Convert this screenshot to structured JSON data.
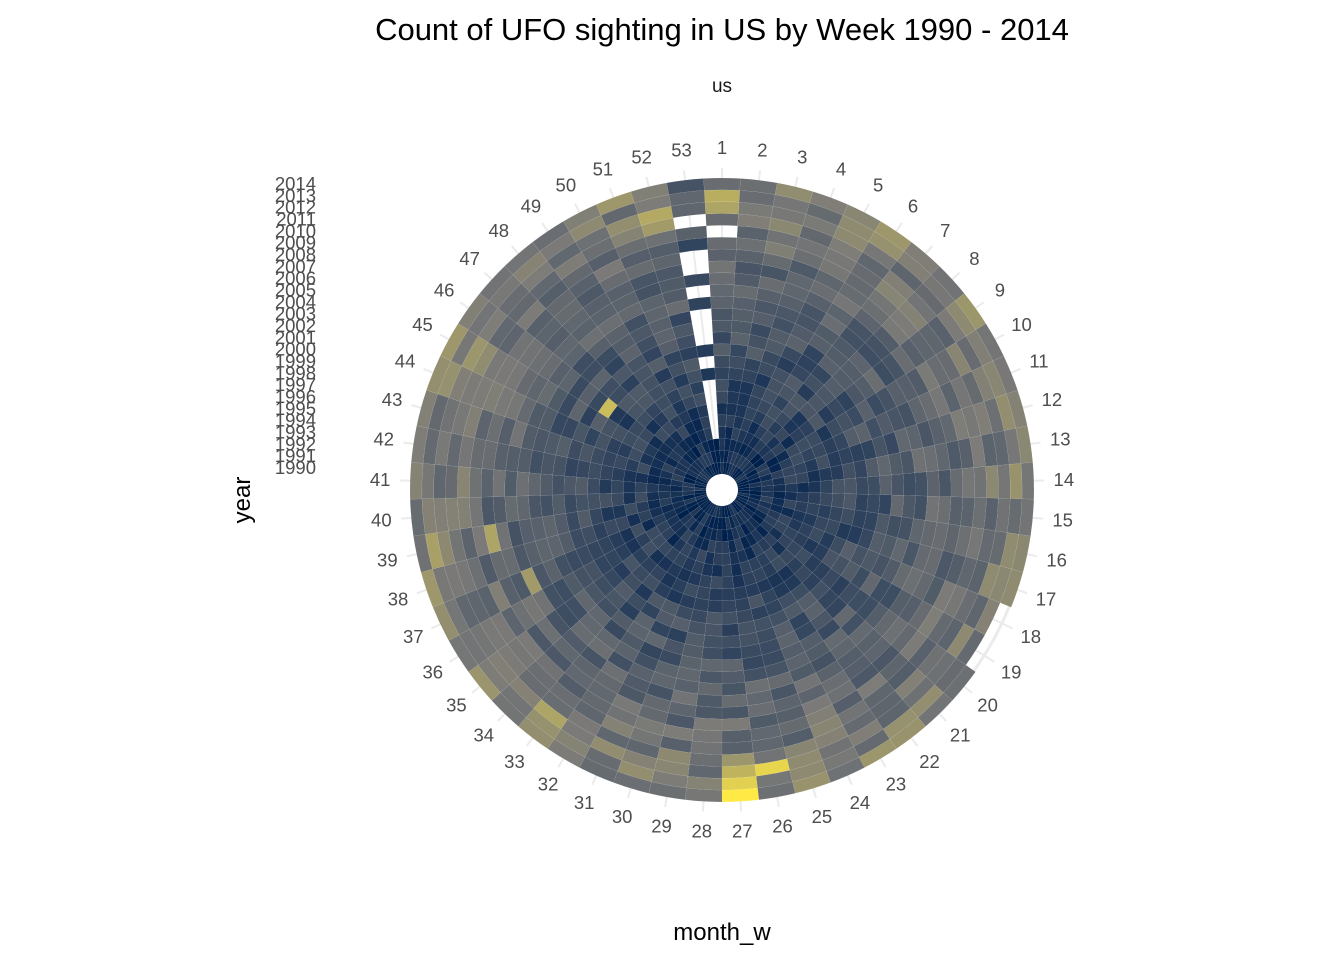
{
  "chart_data": {
    "type": "heatmap",
    "coord": "polar",
    "title": "Count of UFO sighting in US by Week 1990 - 2014",
    "facet": "us",
    "xlabel": "month_w",
    "ylabel": "year",
    "x_categories": [
      "1",
      "2",
      "3",
      "4",
      "5",
      "6",
      "7",
      "8",
      "9",
      "10",
      "11",
      "12",
      "13",
      "14",
      "15",
      "16",
      "17",
      "18",
      "19",
      "20",
      "21",
      "22",
      "23",
      "24",
      "25",
      "26",
      "27",
      "28",
      "29",
      "30",
      "31",
      "32",
      "33",
      "34",
      "35",
      "36",
      "37",
      "38",
      "39",
      "40",
      "41",
      "42",
      "43",
      "44",
      "45",
      "46",
      "47",
      "48",
      "49",
      "50",
      "51",
      "52",
      "53"
    ],
    "y_categories": [
      "1990",
      "1991",
      "1992",
      "1993",
      "1994",
      "1995",
      "1996",
      "1997",
      "1998",
      "1999",
      "2000",
      "2001",
      "2002",
      "2003",
      "2004",
      "2005",
      "2006",
      "2007",
      "2008",
      "2009",
      "2010",
      "2011",
      "2012",
      "2013",
      "2014"
    ],
    "grid": true,
    "legend": "none",
    "colors": {
      "low": "#00204c",
      "mid": "#7c7b78",
      "high": "#ffe945",
      "grid": "#ebebeb"
    },
    "hotspots": [
      {
        "week": 27,
        "year": "2014",
        "level": 1.0
      },
      {
        "week": 27,
        "year": "2013",
        "level": 0.9
      },
      {
        "week": 27,
        "year": "2012",
        "level": 0.78
      },
      {
        "week": 26,
        "year": "2012",
        "level": 0.92
      },
      {
        "week": 27,
        "year": "2011",
        "level": 0.66
      },
      {
        "week": 1,
        "year": "2013",
        "level": 0.76
      },
      {
        "week": 1,
        "year": "2012",
        "level": 0.72
      },
      {
        "week": 52,
        "year": "2012",
        "level": 0.74
      },
      {
        "week": 52,
        "year": "2011",
        "level": 0.68
      },
      {
        "week": 33,
        "year": "2012",
        "level": 0.72
      },
      {
        "week": 33,
        "year": "2013",
        "level": 0.64
      },
      {
        "week": 39,
        "year": "2013",
        "level": 0.7
      },
      {
        "week": 39,
        "year": "2008",
        "level": 0.72
      },
      {
        "week": 45,
        "year": "2012",
        "level": 0.66
      },
      {
        "week": 45,
        "year": "2011",
        "level": 0.62
      },
      {
        "week": 44,
        "year": "2013",
        "level": 0.64
      },
      {
        "week": 46,
        "year": "2000",
        "level": 0.82
      },
      {
        "week": 37,
        "year": "2006",
        "level": 0.68
      }
    ],
    "missing": [
      {
        "week": 1,
        "year": "2010"
      },
      {
        "week": 53,
        "year": "2011"
      },
      {
        "week": 53,
        "year": "2008"
      },
      {
        "week": 53,
        "year": "2007"
      },
      {
        "week": 53,
        "year": "2005"
      },
      {
        "week": 53,
        "year": "2003"
      },
      {
        "week": 53,
        "year": "2002"
      },
      {
        "week": 53,
        "year": "2001"
      },
      {
        "week": 53,
        "year": "1999"
      },
      {
        "week": 53,
        "year": "1997"
      },
      {
        "week": 53,
        "year": "1996"
      },
      {
        "week": 53,
        "year": "1995"
      },
      {
        "week": 53,
        "year": "1994"
      },
      {
        "week": 53,
        "year": "1993"
      },
      {
        "week": 18,
        "year": "2014"
      },
      {
        "week": 19,
        "year": "2014"
      }
    ]
  }
}
